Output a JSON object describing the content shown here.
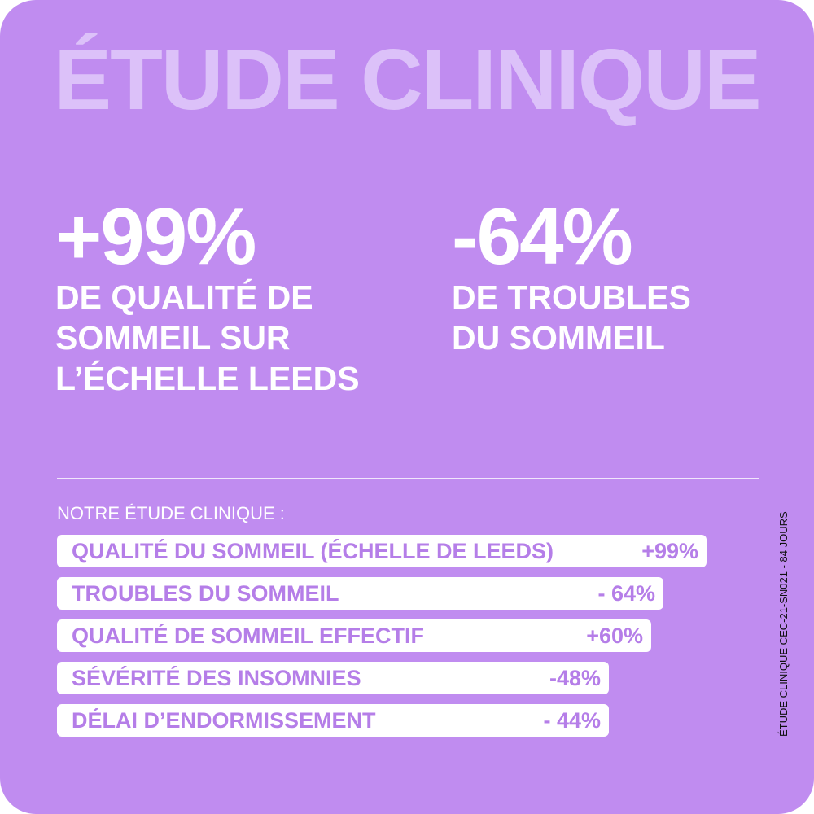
{
  "header": {
    "title": "ÉTUDE CLINIQUE"
  },
  "stats": [
    {
      "value": "+99%",
      "lines": [
        "DE QUALITÉ DE",
        "SOMMEIL SUR",
        "L’ÉCHELLE LEEDS"
      ]
    },
    {
      "value": "-64%",
      "lines": [
        "DE TROUBLES",
        "DU SOMMEIL"
      ]
    }
  ],
  "study": {
    "heading": "NOTRE ÉTUDE CLINIQUE :",
    "rows": [
      {
        "label": "QUALITÉ DU SOMMEIL (ÉCHELLE DE LEEDS)",
        "value": "+99%"
      },
      {
        "label": "TROUBLES DU SOMMEIL",
        "value": "- 64%"
      },
      {
        "label": "QUALITÉ DE SOMMEIL EFFECTIF",
        "value": "+60%"
      },
      {
        "label": "SÉVÉRITÉ DES INSOMNIES",
        "value": "-48%"
      },
      {
        "label": "DÉLAI D’ENDORMISSEMENT",
        "value": "- 44%"
      }
    ]
  },
  "side_note": "ÉTUDE CLINIQUE CEC-21-SN021 - 84 JOURS"
}
